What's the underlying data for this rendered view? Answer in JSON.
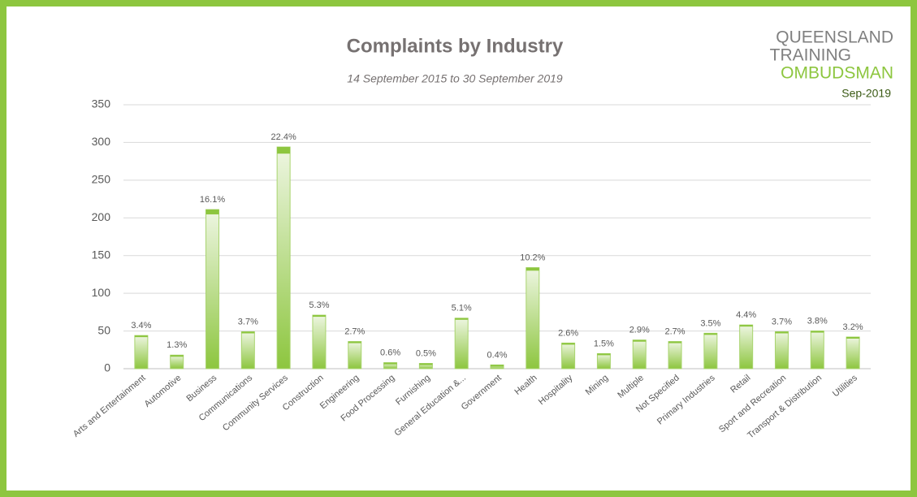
{
  "chart_data": {
    "type": "bar",
    "title": "Complaints by Industry",
    "subtitle": "14 September 2015 to 30 September 2019",
    "logo": [
      "QUEENSLAND",
      "TRAINING",
      "OMBUDSMAN"
    ],
    "date": "Sep-2019",
    "categories": [
      "Arts and Entertainment",
      "Automotive",
      "Business",
      "Communications",
      "Community Services",
      "Construction",
      "Engineering",
      "Food Processing",
      "Furnishing",
      "General Education &...",
      "Government",
      "Health",
      "Hospitality",
      "Mining",
      "Multiple",
      "Not Specified",
      "Primary Industries",
      "Retail",
      "Sport and Recreation",
      "Transport & Distribution",
      "Utilities"
    ],
    "values": [
      44,
      18,
      211,
      49,
      294,
      71,
      36,
      8,
      7,
      67,
      5,
      134,
      34,
      20,
      38,
      36,
      47,
      58,
      49,
      50,
      42
    ],
    "share_labels": [
      "3.4%",
      "1.3%",
      "16.1%",
      "3.7%",
      "22.4%",
      "5.3%",
      "2.7%",
      "0.6%",
      "0.5%",
      "5.1%",
      "0.4%",
      "10.2%",
      "2.6%",
      "1.5%",
      "2.9%",
      "2.7%",
      "3.5%",
      "4.4%",
      "3.7%",
      "3.8%",
      "3.2%"
    ],
    "color": "#8dc63f",
    "ylim": [
      0,
      350
    ],
    "yticks": [
      0,
      50,
      100,
      150,
      200,
      250,
      300,
      350
    ],
    "grid": true
  }
}
